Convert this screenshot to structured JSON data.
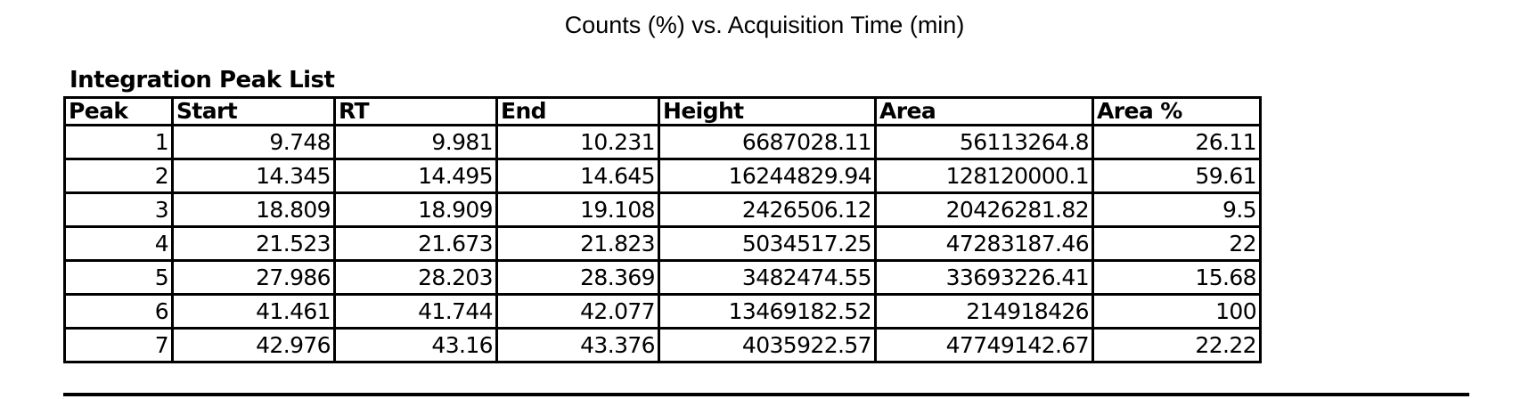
{
  "chart_title": "Counts (%) vs. Acquisition Time (min)",
  "section_title": "Integration Peak List",
  "table": {
    "headers": [
      "Peak",
      "Start",
      "RT",
      "End",
      "Height",
      "Area",
      "Area %"
    ],
    "rows": [
      [
        "1",
        "9.748",
        "9.981",
        "10.231",
        "6687028.11",
        "56113264.8",
        "26.11"
      ],
      [
        "2",
        "14.345",
        "14.495",
        "14.645",
        "16244829.94",
        "128120000.1",
        "59.61"
      ],
      [
        "3",
        "18.809",
        "18.909",
        "19.108",
        "2426506.12",
        "20426281.82",
        "9.5"
      ],
      [
        "4",
        "21.523",
        "21.673",
        "21.823",
        "5034517.25",
        "47283187.46",
        "22"
      ],
      [
        "5",
        "27.986",
        "28.203",
        "28.369",
        "3482474.55",
        "33693226.41",
        "15.68"
      ],
      [
        "6",
        "41.461",
        "41.744",
        "42.077",
        "13469182.52",
        "214918426",
        "100"
      ],
      [
        "7",
        "42.976",
        "43.16",
        "43.376",
        "4035922.57",
        "47749142.67",
        "22.22"
      ]
    ]
  }
}
